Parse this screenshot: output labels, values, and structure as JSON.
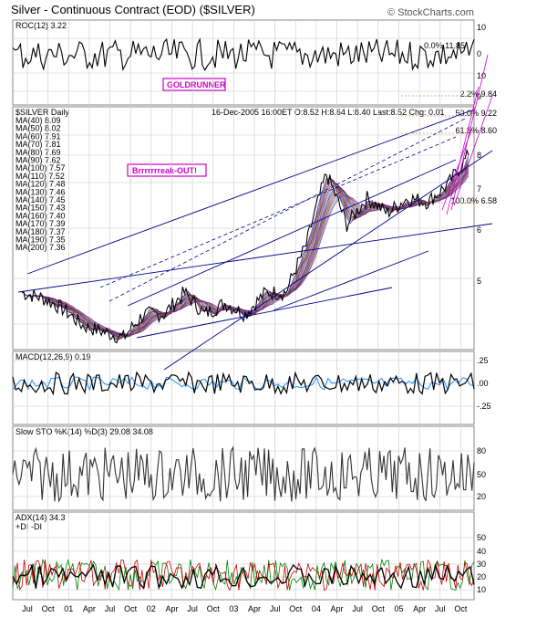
{
  "header": {
    "title": "Silver - Continuous Contract (EOD) ($SILVER)",
    "credit": "© StockCharts.com"
  },
  "price_panel": {
    "symbol_label": "$SILVER Daily",
    "quote": "16-Dec-2005 16:00ET O:8.52 H:8.64 L:8.40 Last:8.52 Chg: 0.01",
    "ma_labels": [
      {
        "text": "MA(40) 8.09",
        "color": "#00008b"
      },
      {
        "text": "MA(50) 8.02",
        "color": "#8b008b"
      },
      {
        "text": "MA(60) 7.91",
        "color": "#006400"
      },
      {
        "text": "MA(70) 7.81",
        "color": "#cc0066"
      },
      {
        "text": "MA(80) 7.69",
        "color": "#000000"
      },
      {
        "text": "MA(90) 7.62",
        "color": "#cc6600"
      },
      {
        "text": "MA(100) 7.57",
        "color": "#4b0082"
      },
      {
        "text": "MA(110) 7.52",
        "color": "#4169e1"
      },
      {
        "text": "MA(120) 7.48",
        "color": "#808080"
      },
      {
        "text": "MA(130) 7.46",
        "color": "#000080"
      },
      {
        "text": "MA(140) 7.45",
        "color": "#cc0000"
      },
      {
        "text": "MA(150) 7.43",
        "color": "#006400"
      },
      {
        "text": "MA(160) 7.40",
        "color": "#cc00cc"
      },
      {
        "text": "MA(170) 7.39",
        "color": "#2f2f2f"
      },
      {
        "text": "MA(180) 7.37",
        "color": "#cc6600"
      },
      {
        "text": "MA(190) 7.35",
        "color": "#1e90ff"
      },
      {
        "text": "MA(200) 7.36",
        "color": "#8b008b"
      }
    ],
    "annotation": "Brrrrrrreak-OUT!",
    "fib_labels": [
      "2.2% 9.84",
      "50.0% 9.22",
      "61.8% 8.60",
      "100.0% 6.58"
    ],
    "y_ticks": [
      "10",
      "9",
      "8",
      "7",
      "6",
      "5"
    ]
  },
  "roc_panel": {
    "label": "ROC(12) 3.22",
    "badge": "GOLDRUNNER",
    "fib_label": "0.0% 11.85",
    "y_ticks": [
      "10",
      "0"
    ]
  },
  "macd_panel": {
    "label": "MACD(12,26,9) 0.19",
    "y_ticks": [
      ".25",
      ".00",
      "-.25"
    ]
  },
  "sto_panel": {
    "label": "Slow STO %K(14) %D(3) 29.08 34.08",
    "y_ticks": [
      "80",
      "50",
      "20"
    ]
  },
  "adx_panel": {
    "label": "ADX(14) 34.3",
    "legend_plus": "+DI",
    "legend_minus": "-DI",
    "y_ticks": [
      "50",
      "40",
      "30",
      "20",
      "10"
    ]
  },
  "x_axis": {
    "labels": [
      "Jul",
      "Oct",
      "01",
      "Apr",
      "Jul",
      "Oct",
      "02",
      "Apr",
      "Jul",
      "Oct",
      "03",
      "Apr",
      "Jul",
      "Oct",
      "04",
      "Apr",
      "Jul",
      "Oct",
      "05",
      "Apr",
      "Jul",
      "Oct"
    ]
  },
  "colors": {
    "price": "#000000",
    "trendline": "#00008b",
    "fib": "#cc00cc",
    "plus_di": "#008000",
    "minus_di": "#cc0000",
    "signal": "#1e90ff",
    "badge_border": "#cc00cc"
  },
  "chart_data": {
    "type": "line",
    "title": "Silver - Continuous Contract (EOD) ($SILVER)",
    "x_range": [
      "Jul 2000",
      "Dec 2005"
    ],
    "ylim": [
      4.4,
      10.5
    ],
    "y_scale": "log",
    "series": [
      {
        "name": "$SILVER Daily",
        "dates": [
          "2000-07",
          "2000-10",
          "2001-01",
          "2001-04",
          "2001-07",
          "2001-10",
          "2002-01",
          "2002-04",
          "2002-07",
          "2002-10",
          "2003-01",
          "2003-04",
          "2003-07",
          "2003-10",
          "2004-01",
          "2004-04",
          "2004-07",
          "2004-10",
          "2005-01",
          "2005-04",
          "2005-07",
          "2005-10",
          "2005-12"
        ],
        "values": [
          5.0,
          4.9,
          4.7,
          4.4,
          4.3,
          4.2,
          4.6,
          4.6,
          5.0,
          4.6,
          4.8,
          4.6,
          5.0,
          5.0,
          6.0,
          7.9,
          6.5,
          7.2,
          6.8,
          7.2,
          7.1,
          7.6,
          8.5
        ]
      }
    ],
    "indicators": {
      "ROC(12)": 3.22,
      "MACD(12,26,9)": 0.19,
      "Slow STO %K(14)": 29.08,
      "Slow STO %D(3)": 34.08,
      "ADX(14)": 34.3
    }
  }
}
